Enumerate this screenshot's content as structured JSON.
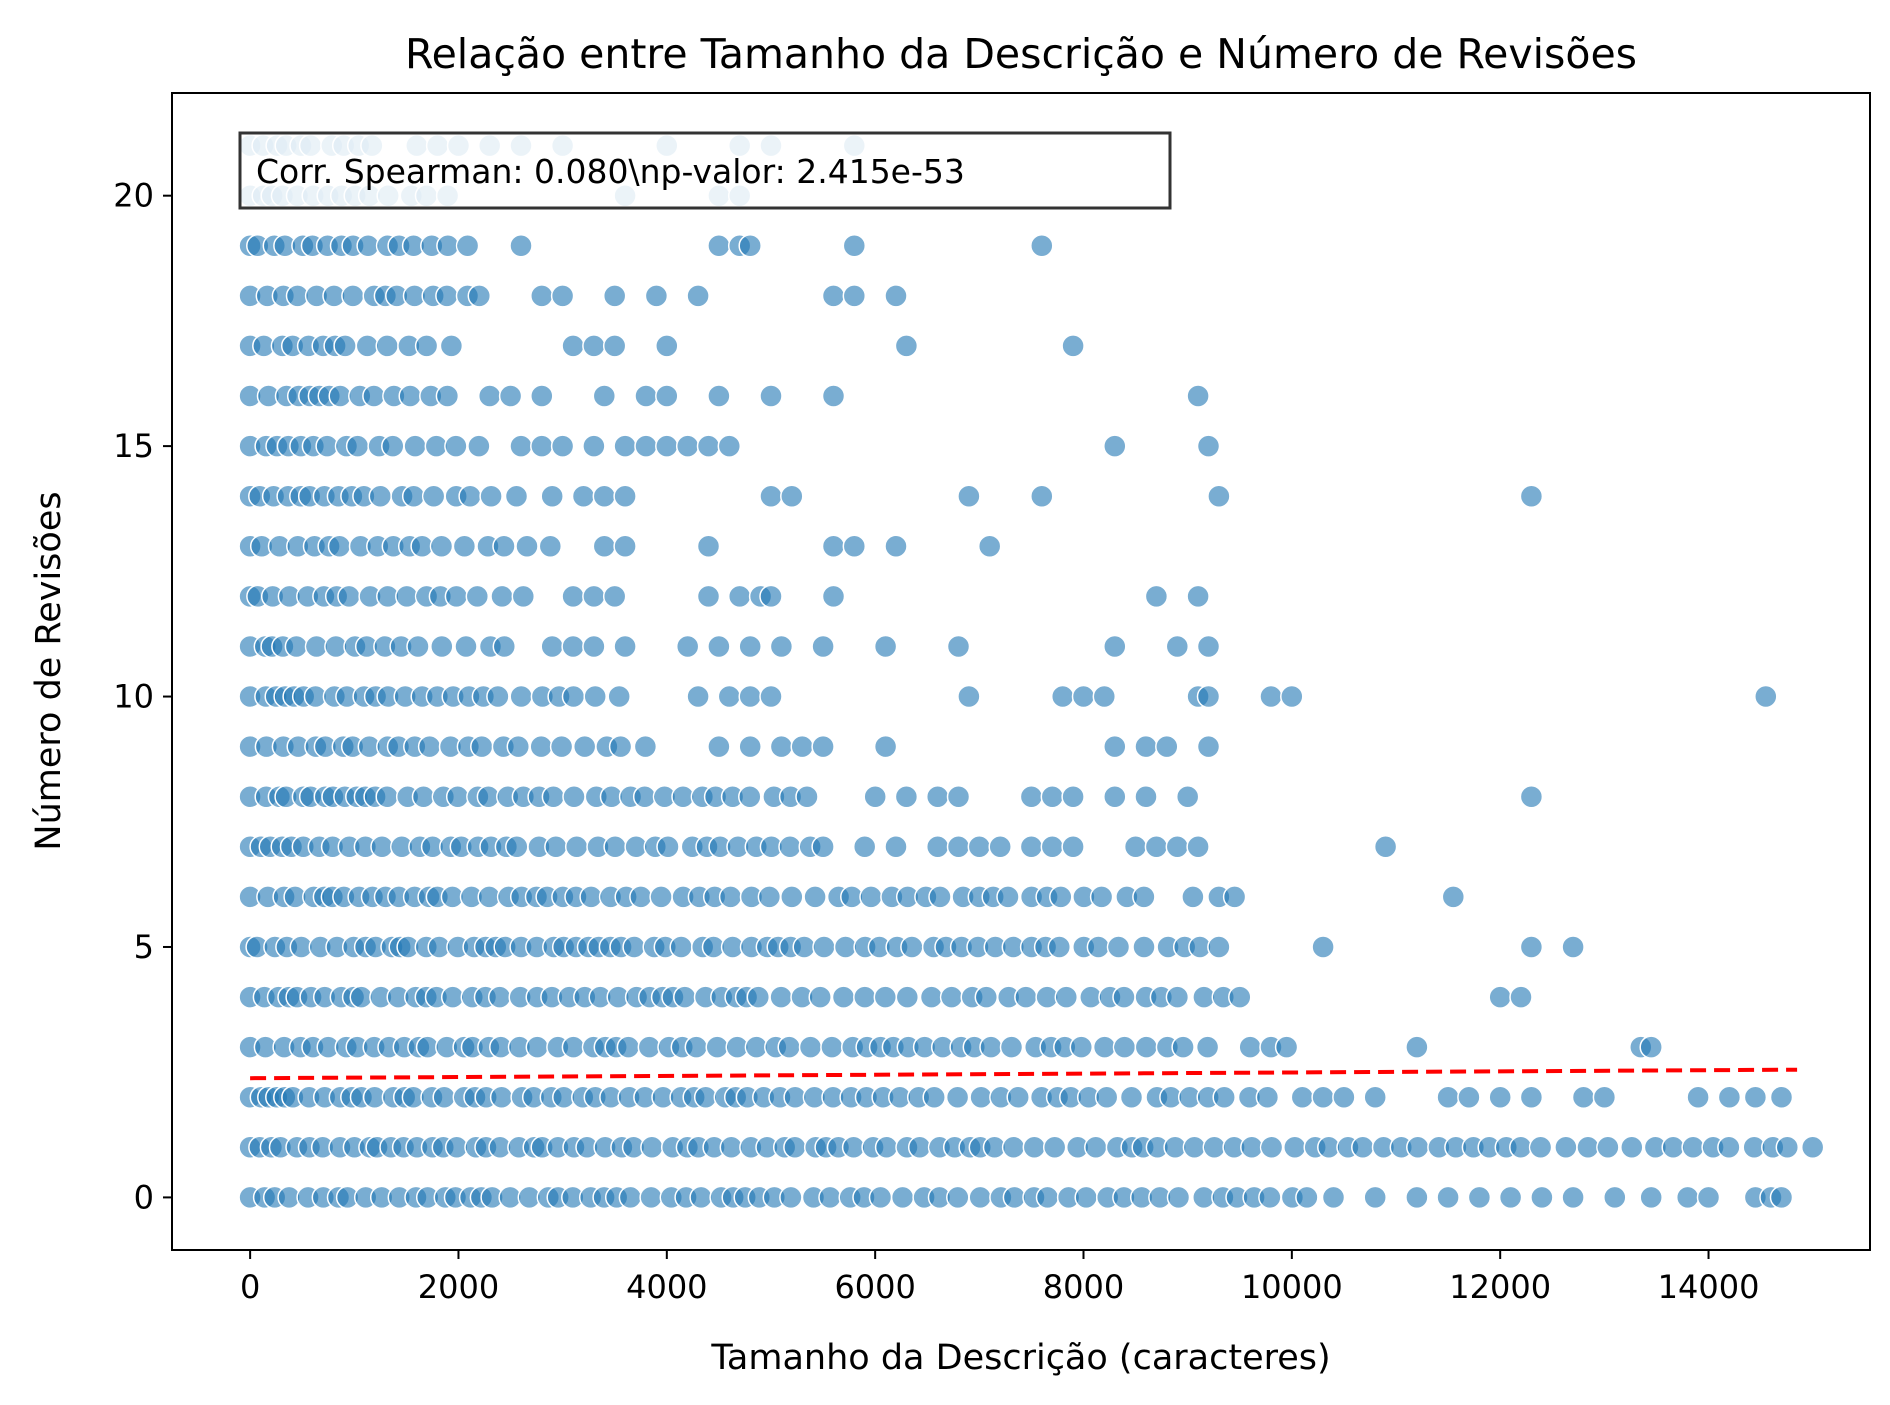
{
  "chart_data": {
    "type": "scatter",
    "title": "Relação entre Tamanho da Descrição e Número de Revisões",
    "xlabel": "Tamanho da Descrição (caracteres)",
    "ylabel": "Número de Revisões",
    "xlim": [
      -750,
      15550
    ],
    "ylim": [
      -1.05,
      22.05
    ],
    "x_ticks": [
      0,
      2000,
      4000,
      6000,
      8000,
      10000,
      12000,
      14000
    ],
    "y_ticks": [
      0,
      5,
      10,
      15,
      20
    ],
    "grid": false,
    "legend": "none",
    "point_color": "#1f77b4",
    "point_alpha": 0.6,
    "point_edge_color": "#ffffff",
    "trend_line": {
      "color": "#ff0000",
      "style": "dashed",
      "x": [
        0,
        14850
      ],
      "y": [
        2.38,
        2.55
      ]
    },
    "annotation": {
      "text": "Corr. Spearman: 0.080\\np-valor: 2.415e-53",
      "position": "top-left"
    },
    "dense_bands": [
      {
        "y": 0,
        "x_range": [
          0,
          10250
        ]
      },
      {
        "y": 1,
        "x_range": [
          0,
          14900
        ]
      },
      {
        "y": 2,
        "x_range": [
          0,
          10000
        ]
      },
      {
        "y": 3,
        "x_range": [
          0,
          9200
        ]
      },
      {
        "y": 4,
        "x_range": [
          0,
          9400
        ]
      },
      {
        "y": 5,
        "x_range": [
          0,
          9200
        ]
      },
      {
        "y": 6,
        "x_range": [
          0,
          8700
        ]
      },
      {
        "y": 7,
        "x_range": [
          0,
          5400
        ]
      },
      {
        "y": 8,
        "x_range": [
          0,
          5500
        ]
      },
      {
        "y": 9,
        "x_range": [
          0,
          4000
        ]
      },
      {
        "y": 10,
        "x_range": [
          0,
          3700
        ]
      },
      {
        "y": 11,
        "x_range": [
          0,
          2600
        ]
      },
      {
        "y": 12,
        "x_range": [
          0,
          2800
        ]
      },
      {
        "y": 13,
        "x_range": [
          0,
          2900
        ]
      },
      {
        "y": 14,
        "x_range": [
          0,
          2600
        ]
      },
      {
        "y": 15,
        "x_range": [
          0,
          2300
        ]
      },
      {
        "y": 16,
        "x_range": [
          0,
          2100
        ]
      },
      {
        "y": 17,
        "x_range": [
          0,
          2000
        ]
      },
      {
        "y": 18,
        "x_range": [
          0,
          2100
        ]
      },
      {
        "y": 19,
        "x_range": [
          0,
          2200
        ]
      },
      {
        "y": 20,
        "x_range": [
          0,
          1900
        ]
      },
      {
        "y": 21,
        "x_range": [
          0,
          1400
        ]
      }
    ],
    "points": [
      {
        "y": 0,
        "x": [
          10400,
          10800,
          11200,
          11500,
          11800,
          12100,
          12400,
          12700,
          13100,
          13450,
          13800,
          14000,
          14450,
          14600,
          14700
        ]
      },
      {
        "y": 1,
        "x": [
          15000
        ]
      },
      {
        "y": 2,
        "x": [
          10100,
          10300,
          10500,
          10800,
          11500,
          11700,
          12000,
          12300,
          12800,
          13000,
          13900,
          14200,
          14450,
          14700
        ]
      },
      {
        "y": 3,
        "x": [
          9600,
          9800,
          9950,
          11200,
          13350,
          13450
        ]
      },
      {
        "y": 4,
        "x": [
          9500,
          12000,
          12200
        ]
      },
      {
        "y": 5,
        "x": [
          9300,
          10300,
          12300,
          12700
        ]
      },
      {
        "y": 6,
        "x": [
          9050,
          9300,
          9450,
          11550
        ]
      },
      {
        "y": 7,
        "x": [
          5500,
          5900,
          6200,
          6600,
          6800,
          7000,
          7200,
          7500,
          7700,
          7900,
          8500,
          8700,
          8900,
          9100,
          10900
        ]
      },
      {
        "y": 8,
        "x": [
          6000,
          6300,
          6600,
          6800,
          7500,
          7700,
          7900,
          8300,
          8600,
          9000,
          12300
        ]
      },
      {
        "y": 9,
        "x": [
          4500,
          4800,
          5100,
          5300,
          5500,
          6100,
          8300,
          8600,
          8800,
          9200
        ]
      },
      {
        "y": 10,
        "x": [
          4300,
          4600,
          4800,
          5000,
          6900,
          7800,
          8000,
          8200,
          9100,
          9200,
          9800,
          10000,
          14550
        ]
      },
      {
        "y": 11,
        "x": [
          2900,
          3100,
          3300,
          3600,
          4200,
          4500,
          4800,
          5100,
          5500,
          6100,
          6800,
          8300,
          8900,
          9200
        ]
      },
      {
        "y": 12,
        "x": [
          3100,
          3300,
          3500,
          4400,
          4700,
          4900,
          5000,
          5600,
          8700,
          9100
        ]
      },
      {
        "y": 13,
        "x": [
          3400,
          3600,
          4400,
          5600,
          5800,
          6200,
          7100
        ]
      },
      {
        "y": 14,
        "x": [
          2900,
          3200,
          3400,
          3600,
          5000,
          5200,
          6900,
          7600,
          9300,
          12300
        ]
      },
      {
        "y": 15,
        "x": [
          2600,
          2800,
          3000,
          3300,
          3600,
          3800,
          4000,
          4200,
          4400,
          4600,
          8300,
          9200
        ]
      },
      {
        "y": 16,
        "x": [
          2300,
          2500,
          2800,
          3400,
          3800,
          4000,
          4500,
          5000,
          5600,
          9100
        ]
      },
      {
        "y": 17,
        "x": [
          3100,
          3300,
          3500,
          4000,
          6300,
          7900
        ]
      },
      {
        "y": 18,
        "x": [
          2200,
          2800,
          3000,
          3500,
          3900,
          4300,
          5600,
          5800,
          6200
        ]
      },
      {
        "y": 19,
        "x": [
          2600,
          4500,
          4700,
          4800,
          5800,
          7600
        ]
      },
      {
        "y": 20,
        "x": [
          3600,
          4500,
          4700
        ]
      },
      {
        "y": 21,
        "x": [
          1600,
          1800,
          2000,
          2300,
          2600,
          3000,
          4000,
          4700,
          5000,
          5800
        ]
      }
    ]
  }
}
